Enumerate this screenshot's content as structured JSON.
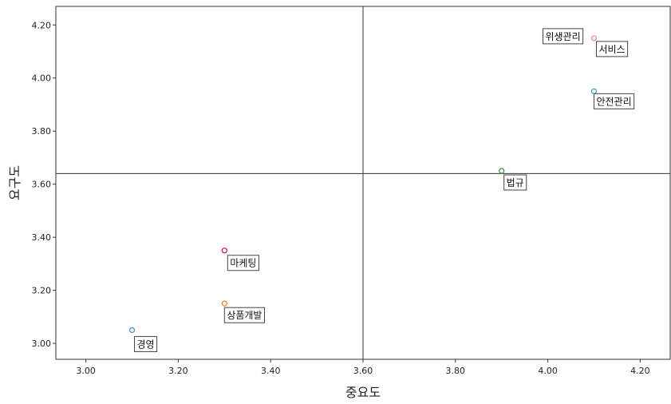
{
  "chart_data": {
    "type": "scatter",
    "xlabel": "중요도",
    "ylabel": "요구도",
    "xlim": [
      2.935,
      4.265
    ],
    "ylim": [
      2.94,
      4.27
    ],
    "xticks": [
      "3.00",
      "3.20",
      "3.40",
      "3.60",
      "3.80",
      "4.00",
      "4.20"
    ],
    "yticks": [
      "3.00",
      "3.20",
      "3.40",
      "3.60",
      "3.80",
      "4.00",
      "4.20"
    ],
    "reference_lines": {
      "x": 3.6,
      "y": 3.64
    },
    "grid": false,
    "points": [
      {
        "label": "위생관리",
        "x": 4.1,
        "y": 4.15,
        "color": "#f08080"
      },
      {
        "label": "서비스",
        "x": 4.1,
        "y": 4.15,
        "color": "#e9a0b0"
      },
      {
        "label": "안전관리",
        "x": 4.1,
        "y": 3.95,
        "color": "#33a8c8"
      },
      {
        "label": "법규",
        "x": 3.9,
        "y": 3.65,
        "color": "#3a9a3a"
      },
      {
        "label": "마케팅",
        "x": 3.3,
        "y": 3.35,
        "color": "#cc2255"
      },
      {
        "label": "상품개발",
        "x": 3.3,
        "y": 3.15,
        "color": "#ee8833"
      },
      {
        "label": "경영",
        "x": 3.1,
        "y": 3.05,
        "color": "#4d8fd0"
      }
    ]
  }
}
